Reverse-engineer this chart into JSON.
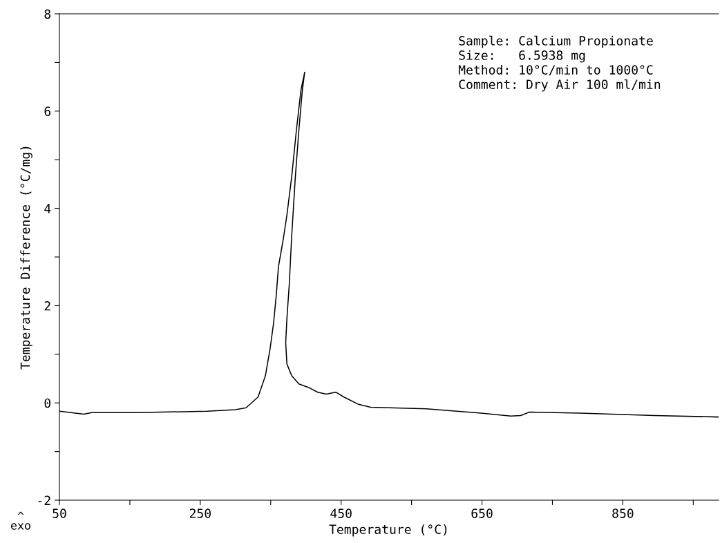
{
  "chart_data": {
    "type": "line",
    "xlabel": "Temperature (°C)",
    "ylabel": "Temperature Difference (°C/mg)",
    "annotations": [
      "Sample: Calcium Propionate\nSize:   6.5938 mg\nMethod: 10°C/min to 1000°C\nComment: Dry Air 100 ml/min",
      "^\nexo"
    ],
    "series": [
      {
        "color": "#000000",
        "x": [
          50,
          84.7,
          96,
          162,
          260,
          300,
          315,
          332,
          342.5,
          349,
          354,
          357.8,
          361,
          368,
          373,
          379.8,
          386.5,
          393,
          398.3,
          395,
          390,
          385,
          379.8,
          376.4,
          373,
          371.3,
          373,
          379.8,
          390,
          403.4,
          416.7,
          428.9,
          442.4,
          454,
          474.7,
          492,
          571,
          648.6,
          690.8,
          705,
          717.3,
          789,
          895,
          986
        ],
        "values": [
          -0.17,
          -0.23,
          -0.2,
          -0.2,
          -0.17,
          -0.14,
          -0.1,
          0.12,
          0.56,
          1.1,
          1.63,
          2.2,
          2.8,
          3.38,
          3.86,
          4.65,
          5.61,
          6.44,
          6.8,
          6.44,
          5.61,
          4.65,
          3.43,
          2.45,
          1.73,
          1.24,
          0.8,
          0.56,
          0.39,
          0.32,
          0.22,
          0.18,
          0.22,
          0.12,
          -0.03,
          -0.09,
          -0.12,
          -0.21,
          -0.27,
          -0.26,
          -0.19,
          -0.21,
          -0.26,
          -0.29
        ]
      }
    ],
    "xlim": [
      50,
      986
    ],
    "ylim": [
      -2,
      8
    ],
    "xticks": [
      50,
      {
        "value": 150,
        "label": null
      },
      250,
      {
        "value": 350,
        "label": null
      },
      450,
      {
        "value": 550,
        "label": null
      },
      650,
      {
        "value": 750,
        "label": null
      },
      850,
      {
        "value": 950,
        "label": null
      }
    ],
    "yticks": [
      -2,
      {
        "value": -1,
        "label": null
      },
      0,
      {
        "value": 1,
        "label": null
      },
      2,
      {
        "value": 3,
        "label": null
      },
      4,
      {
        "value": 5,
        "label": null
      },
      6,
      {
        "value": 7,
        "label": null
      },
      8
    ],
    "grid": false,
    "legend": false,
    "marker": "none",
    "line_style": "solid"
  }
}
